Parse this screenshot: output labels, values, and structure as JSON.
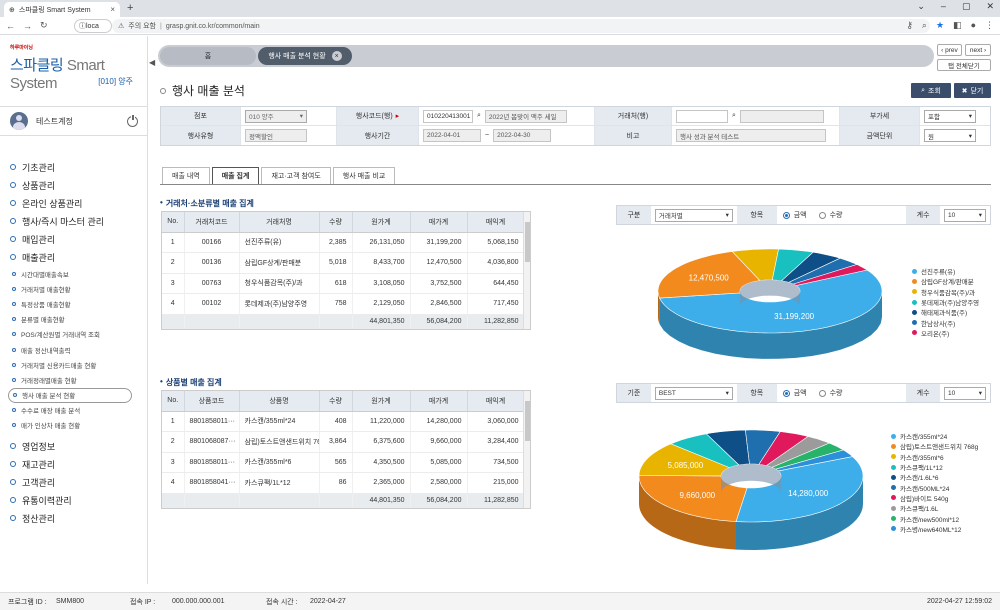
{
  "browser": {
    "tab_title": "스파클링 Smart System",
    "url_warning": "주의 요함",
    "url": "grasp.gnit.co.kr/common/main",
    "left_tab": "loca"
  },
  "sidebar": {
    "logo_small": "하루마이닝",
    "logo_main": "스파클링",
    "logo_sub": "Smart System",
    "branch": "[010] 양주",
    "user": "테스트계정",
    "menus": [
      "기초관리",
      "상품관리",
      "온라인 상품관리",
      "행사/즉시 마스터 관리",
      "매입관리",
      "매출관리"
    ],
    "submenus": [
      "시간대별매출속보",
      "거래처별 매출현황",
      "특정상품 매출현황",
      "분류별 매출현황",
      "POS/계산원별 거래내역 조회",
      "매출 정산내역출력",
      "거래처별 신용카드매출 현황",
      "거래정래별매출 현황",
      "행사 매출 분석 현황",
      "수수료 매장 매출 분석",
      "매가 인상차 매출 현황"
    ],
    "menus2": [
      "영업정보",
      "재고관리",
      "고객관리",
      "유통이력관리",
      "정산관리"
    ]
  },
  "topbar": {
    "tab_home": "홈",
    "tab_current": "행사 매출 분석 현황",
    "prev": "prev",
    "next": "next",
    "close_all": "탭 전체닫기"
  },
  "page": {
    "title": "행사 매출 분석",
    "search_btn": "조회",
    "close_btn": "닫기"
  },
  "form": {
    "store_label": "점포",
    "store_value": "010 양주",
    "event_code_label": "행사코드(행)",
    "event_code_value": "010220413001",
    "event_name_value": "2022년 봄맞이 맥주 세일",
    "vendor_label": "거래처(행)",
    "vat_label": "부가세",
    "vat_value": "포함",
    "type_label": "행사유형",
    "type_value": "정액할인",
    "period_label": "행사기간",
    "date_from": "2022-04-01",
    "date_sep": "~",
    "date_to": "2022-04-30",
    "note_label": "비고",
    "note_value": "행사 성과 분석 테스트",
    "unit_label": "금액단위",
    "unit_value": "원"
  },
  "tabs": [
    "매출 내역",
    "매출 집계",
    "재고·고객 참여도",
    "행사 매출 비교"
  ],
  "grid1": {
    "title": "거래처·소분류별 매출 집계",
    "headers": [
      "No.",
      "거래처코드",
      "거래처명",
      "수량",
      "원가계",
      "매가계",
      "매익계"
    ],
    "rows": [
      [
        "1",
        "00166",
        "선진주류(유)",
        "2,385",
        "26,131,050",
        "31,199,200",
        "5,068,150"
      ],
      [
        "2",
        "00136",
        "삼립GF상계/판매분",
        "5,018",
        "8,433,700",
        "12,470,500",
        "4,036,800"
      ],
      [
        "3",
        "00763",
        "청우식품감목(주)/과",
        "618",
        "3,108,050",
        "3,752,500",
        "644,450"
      ],
      [
        "4",
        "00102",
        "롯데제과(주)남양주영",
        "758",
        "2,129,050",
        "2,846,500",
        "717,450"
      ]
    ],
    "sum": [
      "44,801,350",
      "56,084,200",
      "11,282,850"
    ]
  },
  "grid2": {
    "title": "상품별 매출 집계",
    "headers": [
      "No.",
      "상품코드",
      "상품명",
      "수량",
      "원가계",
      "매가계",
      "매익계"
    ],
    "rows": [
      [
        "1",
        "8801858011···",
        "카스캔/355ml*24",
        "408",
        "11,220,000",
        "14,280,000",
        "3,060,000"
      ],
      [
        "2",
        "8801068087···",
        "삼립)토스트앤샌드위치 768g",
        "3,864",
        "6,375,600",
        "9,660,000",
        "3,284,400"
      ],
      [
        "3",
        "8801858011···",
        "카스캔/355ml*6",
        "565",
        "4,350,500",
        "5,085,000",
        "734,500"
      ],
      [
        "4",
        "8801858041···",
        "카스큐팩/1L*12",
        "86",
        "2,365,000",
        "2,580,000",
        "215,000"
      ]
    ],
    "sum": [
      "44,801,350",
      "56,084,200",
      "11,282,850"
    ]
  },
  "chart1_ctrl": {
    "label": "구분",
    "select": "거래처별",
    "item_label": "항목",
    "opt1": "금액",
    "opt2": "수량",
    "count_label": "계수",
    "count": "10"
  },
  "chart2_ctrl": {
    "label": "기준",
    "select": "BEST",
    "item_label": "항목",
    "opt1": "금액",
    "opt2": "수량",
    "count_label": "계수",
    "count": "10"
  },
  "chart_data": [
    {
      "type": "pie",
      "values": [
        31199200,
        12470500,
        3752500,
        2846500,
        2500000,
        1900000,
        1415500
      ],
      "data_labels": [
        "31,199,200",
        "12,470,500",
        "",
        "",
        "",
        "",
        ""
      ],
      "legend": [
        "선진주류(유)",
        "삼립GF상계/판매분",
        "청우식품감목(주)/과",
        "롯데제과(주)남양주영",
        "해태제과식품(주)",
        "한남상사(주)",
        "오리온(주)"
      ],
      "colors": [
        "#3daee9",
        "#f28a1e",
        "#e8b400",
        "#18c1bf",
        "#0d4f86",
        "#1f6fae",
        "#e0185c"
      ]
    },
    {
      "type": "pie",
      "values": [
        14280000,
        9660000,
        5085000,
        2580000,
        2400000,
        2100000,
        1800000,
        1600000,
        1300000,
        1100000
      ],
      "data_labels": [
        "14,280,000",
        "9,660,000",
        "5,085,000",
        "",
        "",
        "",
        "",
        "",
        "",
        ""
      ],
      "legend": [
        "카스캔/355ml*24",
        "삼립)토스트앤샌드위치 768g",
        "카스캔/355ml*6",
        "카스큐팩/1L*12",
        "카스캔/1.6L*6",
        "카스캔/500ML*24",
        "삼립)바이트 540g",
        "카스큐팩/1.6L",
        "카스캔/new500ml*12",
        "카스병/new640ML*12"
      ],
      "colors": [
        "#3daee9",
        "#f28a1e",
        "#e8b400",
        "#18c1bf",
        "#0d4f86",
        "#1f6fae",
        "#e0185c",
        "#9b9b9b",
        "#27b36a",
        "#2b8fd9"
      ]
    }
  ],
  "status": {
    "program_label": "프로그램 ID :",
    "program_id": "SMM800",
    "ip_label": "접속 IP :",
    "ip": "000.000.000.001",
    "time_label": "접속 시간 :",
    "time": "2022-04-27",
    "clock": "2022-04-27 12:59:02"
  }
}
